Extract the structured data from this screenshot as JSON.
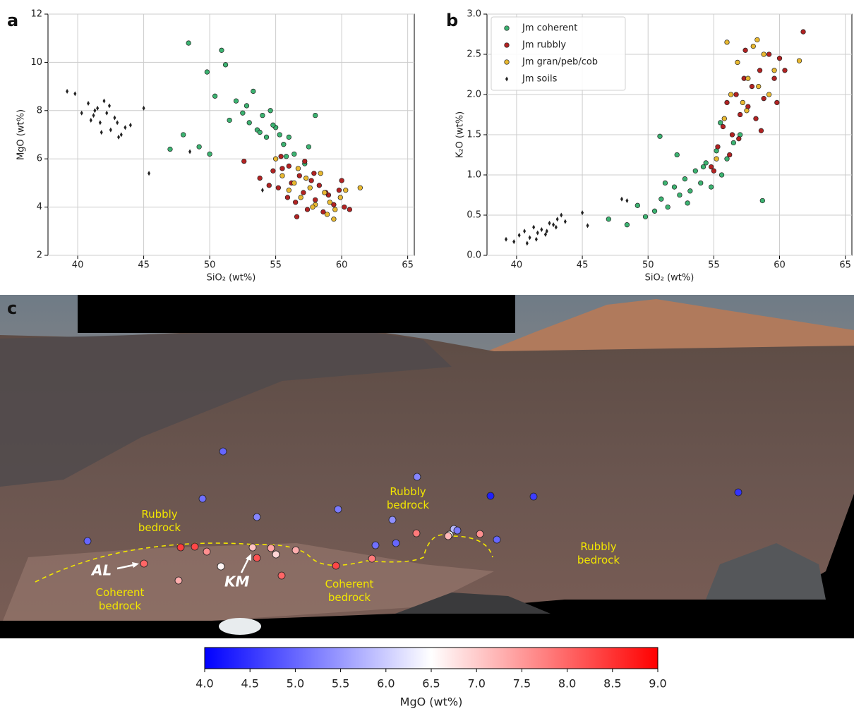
{
  "chart_data": [
    {
      "type": "scatter",
      "panel_label": "a",
      "xlabel": "SiO₂ (wt%)",
      "ylabel": "MgO (wt%)",
      "xlim": [
        37.75,
        65.5
      ],
      "xticks": [
        40,
        45,
        50,
        55,
        60,
        65
      ],
      "ylim": [
        2,
        12
      ],
      "yticks": [
        2,
        4,
        6,
        8,
        10,
        12
      ],
      "grid": true,
      "series": [
        {
          "name": "Jm coherent",
          "color": "#3cb371",
          "marker": "o",
          "x": [
            48.4,
            50.9,
            49.8,
            50.4,
            51.2,
            52.0,
            52.5,
            53.0,
            53.3,
            53.6,
            54.0,
            54.3,
            54.6,
            55.0,
            55.3,
            55.6,
            56.0,
            56.4,
            57.2,
            58.0,
            47.0,
            48.0,
            49.2,
            50.0,
            51.5,
            52.8,
            53.8,
            54.8,
            55.8,
            57.5
          ],
          "values": [
            10.8,
            10.5,
            9.6,
            8.6,
            9.9,
            8.4,
            7.9,
            7.5,
            8.8,
            7.2,
            7.8,
            6.9,
            8.0,
            7.3,
            7.0,
            6.6,
            6.9,
            6.2,
            5.8,
            7.8,
            6.4,
            7.0,
            6.5,
            6.2,
            7.6,
            8.2,
            7.1,
            7.4,
            6.1,
            6.5
          ]
        },
        {
          "name": "Jm rubbly",
          "color": "#b22222",
          "marker": "o",
          "x": [
            52.6,
            53.8,
            54.8,
            55.2,
            55.5,
            55.9,
            56.2,
            56.5,
            56.8,
            57.1,
            57.4,
            57.7,
            58.0,
            58.3,
            58.6,
            59.0,
            59.4,
            59.8,
            60.2,
            60.6,
            55.4,
            56.0,
            56.6,
            57.2,
            57.9,
            58.8,
            54.5,
            60.0
          ],
          "values": [
            5.9,
            5.2,
            5.5,
            4.8,
            5.6,
            4.4,
            5.0,
            4.2,
            5.3,
            4.6,
            3.9,
            5.1,
            4.3,
            4.9,
            3.8,
            4.5,
            4.1,
            4.7,
            4.0,
            3.9,
            6.1,
            5.7,
            3.6,
            5.9,
            5.4,
            4.6,
            4.9,
            5.1
          ]
        },
        {
          "name": "Jm gran/peb/cob",
          "color": "#e8b830",
          "marker": "o",
          "x": [
            55.5,
            56.0,
            56.4,
            56.9,
            57.3,
            57.6,
            58.0,
            58.4,
            58.7,
            59.1,
            59.5,
            59.9,
            61.4,
            55.0,
            56.7,
            57.8,
            58.9,
            59.4,
            60.3
          ],
          "values": [
            5.3,
            4.7,
            5.0,
            4.4,
            5.2,
            4.8,
            4.1,
            5.4,
            4.6,
            4.2,
            3.9,
            4.4,
            4.8,
            6.0,
            5.6,
            4.0,
            3.7,
            3.5,
            4.7
          ]
        },
        {
          "name": "Jm soils",
          "color": "#222222",
          "marker": "d",
          "x": [
            39.2,
            39.8,
            40.3,
            40.8,
            41.0,
            41.2,
            41.5,
            41.7,
            42.0,
            42.2,
            42.5,
            42.8,
            43.0,
            43.3,
            43.6,
            44.0,
            41.3,
            41.8,
            42.4,
            43.1,
            45.0,
            45.4,
            48.5,
            54.0
          ],
          "values": [
            8.8,
            8.7,
            7.9,
            8.3,
            7.6,
            7.8,
            8.1,
            7.5,
            8.4,
            7.9,
            7.2,
            7.7,
            7.5,
            7.0,
            7.3,
            7.4,
            8.0,
            7.1,
            8.2,
            6.9,
            8.1,
            5.4,
            6.3,
            4.7
          ]
        }
      ]
    },
    {
      "type": "scatter",
      "panel_label": "b",
      "xlabel": "SiO₂ (wt%)",
      "ylabel": "K₂O (wt%)",
      "xlim": [
        37.75,
        65.5
      ],
      "xticks": [
        40,
        45,
        50,
        55,
        60,
        65
      ],
      "ylim": [
        0,
        3
      ],
      "yticks": [
        {
          "value": 0,
          "label": "0.0"
        },
        0.5,
        {
          "value": 1,
          "label": "1.0"
        },
        1.5,
        {
          "value": 2,
          "label": "2.0"
        },
        2.5,
        {
          "value": 3,
          "label": "3.0"
        }
      ],
      "grid": true,
      "legend": "upper left",
      "series": [
        {
          "name": "Jm coherent",
          "color": "#3cb371",
          "marker": "o",
          "x": [
            47.0,
            48.4,
            49.2,
            49.8,
            50.5,
            51.0,
            51.5,
            52.0,
            52.4,
            52.8,
            53.2,
            53.6,
            54.0,
            54.4,
            54.8,
            55.2,
            55.6,
            56.0,
            56.5,
            57.0,
            58.7,
            50.9,
            53.0,
            54.2,
            55.5,
            52.2,
            51.3
          ],
          "values": [
            0.45,
            0.38,
            0.62,
            0.48,
            0.55,
            0.7,
            0.6,
            0.85,
            0.75,
            0.95,
            0.8,
            1.05,
            0.9,
            1.15,
            0.85,
            1.3,
            1.0,
            1.2,
            1.4,
            1.5,
            0.68,
            1.48,
            0.65,
            1.1,
            1.65,
            1.25,
            0.9
          ]
        },
        {
          "name": "Jm rubbly",
          "color": "#b22222",
          "marker": "o",
          "x": [
            54.8,
            55.3,
            55.7,
            56.0,
            56.4,
            56.7,
            57.0,
            57.3,
            57.6,
            57.9,
            58.2,
            58.5,
            58.8,
            59.2,
            59.6,
            60.0,
            60.4,
            61.8,
            56.2,
            57.4,
            58.6,
            59.8,
            55.0,
            56.9
          ],
          "values": [
            1.1,
            1.35,
            1.6,
            1.9,
            1.5,
            2.0,
            1.75,
            2.2,
            1.85,
            2.1,
            1.7,
            2.3,
            1.95,
            2.5,
            2.2,
            2.45,
            2.3,
            2.78,
            1.25,
            2.55,
            1.55,
            1.9,
            1.05,
            1.45
          ]
        },
        {
          "name": "Jm gran/peb/cob",
          "color": "#e8b830",
          "marker": "o",
          "x": [
            55.2,
            55.8,
            56.3,
            56.8,
            57.2,
            57.6,
            58.0,
            58.4,
            58.8,
            59.2,
            59.6,
            61.5,
            56.0,
            57.5,
            58.3
          ],
          "values": [
            1.2,
            1.7,
            2.0,
            2.4,
            1.9,
            2.2,
            2.6,
            2.1,
            2.5,
            2.0,
            2.3,
            2.42,
            2.65,
            1.8,
            2.68
          ]
        },
        {
          "name": "Jm soils",
          "color": "#222222",
          "marker": "d",
          "x": [
            39.2,
            39.8,
            40.2,
            40.6,
            41.0,
            41.3,
            41.6,
            41.9,
            42.2,
            42.5,
            42.8,
            43.1,
            43.4,
            43.7,
            40.8,
            41.5,
            42.3,
            43.0,
            45.0,
            45.4,
            48.0,
            48.4
          ],
          "values": [
            0.2,
            0.17,
            0.25,
            0.3,
            0.22,
            0.35,
            0.28,
            0.32,
            0.26,
            0.4,
            0.38,
            0.45,
            0.5,
            0.42,
            0.15,
            0.2,
            0.3,
            0.35,
            0.53,
            0.37,
            0.7,
            0.68
          ]
        }
      ]
    },
    {
      "type": "colorbar",
      "colormap": "bwr",
      "xlabel": "MgO (wt%)",
      "xlim": [
        4,
        9
      ],
      "xticks": [
        {
          "value": 4,
          "label": "4.0"
        },
        4.5,
        {
          "value": 5,
          "label": "5.0"
        },
        5.5,
        {
          "value": 6,
          "label": "6.0"
        },
        6.5,
        {
          "value": 7,
          "label": "7.0"
        },
        7.5,
        {
          "value": 8,
          "label": "8.0"
        },
        8.5,
        {
          "value": 9,
          "label": "9.0"
        }
      ]
    }
  ],
  "photo": {
    "panel_label": "c",
    "labels": [
      {
        "lines": [
          "Rubbly",
          "bedrock"
        ]
      },
      {
        "lines": [
          "Rubbly",
          "bedrock"
        ]
      },
      {
        "lines": [
          "Rubbly",
          "bedrock"
        ]
      },
      {
        "lines": [
          "Coherent",
          "bedrock"
        ]
      },
      {
        "lines": [
          "Coherent",
          "bedrock"
        ]
      }
    ],
    "callouts": [
      "AL",
      "KM"
    ],
    "mgo_values": [
      5.0,
      5.0,
      5.1,
      5.3,
      5.2,
      5.3,
      5.4,
      5.1,
      5.0,
      4.3,
      4.6,
      4.5,
      5.0,
      5.8,
      5.2,
      6.5,
      7.2,
      7.6,
      7.8,
      8.0,
      8.4,
      8.3,
      7.6,
      7.1,
      7.4,
      6.9,
      8.2,
      6.6,
      7.3,
      8.3,
      7.8,
      8.0,
      7.3
    ]
  }
}
